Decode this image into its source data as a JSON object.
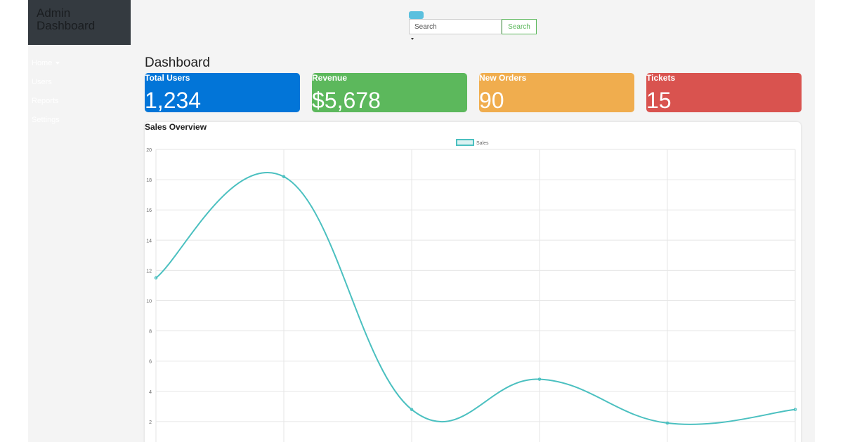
{
  "brand": {
    "title": "Admin Dashboard"
  },
  "sidebar": {
    "items": [
      {
        "label": "Home",
        "has_caret": true
      },
      {
        "label": "Users"
      },
      {
        "label": "Reports"
      },
      {
        "label": "Settings"
      }
    ]
  },
  "header": {
    "search_placeholder": "Search",
    "search_button": "Search"
  },
  "page": {
    "title": "Dashboard"
  },
  "cards": {
    "users": {
      "label": "Total Users",
      "value": "1,234",
      "color": "#0275d8"
    },
    "revenue": {
      "label": "Revenue",
      "value": "$5,678",
      "color": "#5cb85c"
    },
    "orders": {
      "label": "New Orders",
      "value": "90",
      "color": "#f0ad4e"
    },
    "tickets": {
      "label": "Tickets",
      "value": "15",
      "color": "#d9534f"
    }
  },
  "chart_panel": {
    "title": "Sales Overview"
  },
  "chart_data": {
    "type": "line",
    "categories": [
      "",
      "",
      "",
      "",
      "",
      ""
    ],
    "series": [
      {
        "name": "Sales",
        "values": [
          11.5,
          18.2,
          2.8,
          4.8,
          1.9,
          2.8
        ],
        "color": "#4bc0c0"
      }
    ],
    "ylim": [
      0,
      20
    ],
    "yticks": [
      2,
      4,
      6,
      8,
      10,
      12,
      14,
      16,
      18,
      20
    ],
    "grid": true,
    "legend": "top-center"
  }
}
